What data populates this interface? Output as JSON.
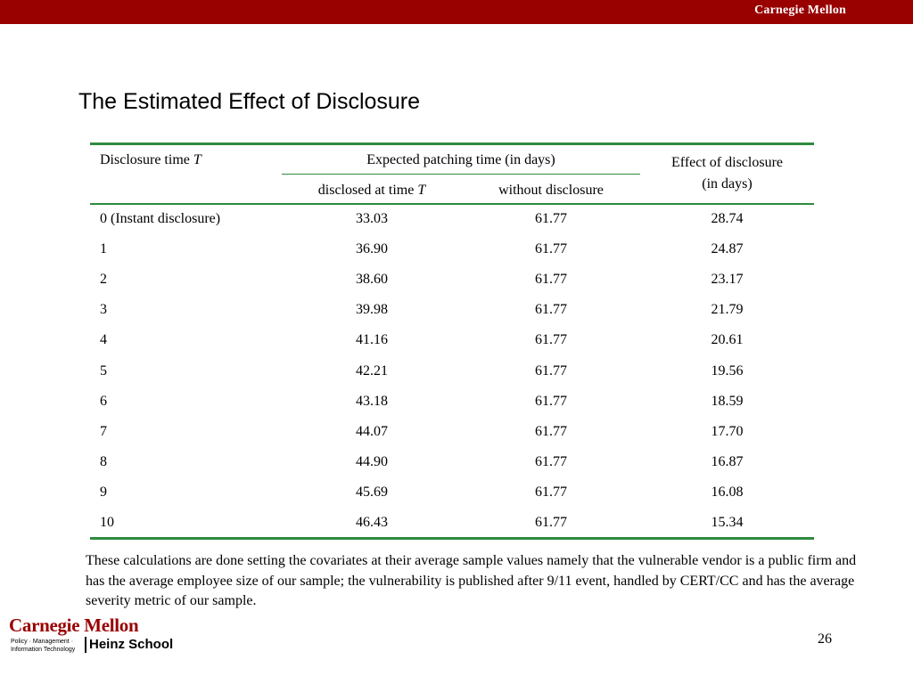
{
  "header": {
    "brand": "Carnegie Mellon",
    "color": "#990000"
  },
  "title": "The Estimated Effect of Disclosure",
  "table": {
    "col0_header": "Disclosure time",
    "col0_header_var": "T",
    "group_header": "Expected patching time (in days)",
    "col1_header": "disclosed at time",
    "col1_header_var": "T",
    "col2_header": "without disclosure",
    "col3_header_line1": "Effect of disclosure",
    "col3_header_line2": "(in days)",
    "rows": [
      [
        "0  (Instant disclosure)",
        "33.03",
        "61.77",
        "28.74"
      ],
      [
        "1",
        "36.90",
        "61.77",
        "24.87"
      ],
      [
        "2",
        "38.60",
        "61.77",
        "23.17"
      ],
      [
        "3",
        "39.98",
        "61.77",
        "21.79"
      ],
      [
        "4",
        "41.16",
        "61.77",
        "20.61"
      ],
      [
        "5",
        "42.21",
        "61.77",
        "19.56"
      ],
      [
        "6",
        "43.18",
        "61.77",
        "18.59"
      ],
      [
        "7",
        "44.07",
        "61.77",
        "17.70"
      ],
      [
        "8",
        "44.90",
        "61.77",
        "16.87"
      ],
      [
        "9",
        "45.69",
        "61.77",
        "16.08"
      ],
      [
        "10",
        "46.43",
        "61.77",
        "15.34"
      ]
    ]
  },
  "note": "These calculations are done setting the covariates at their average sample values namely that the vulnerable vendor is a public firm and has the average employee size of our sample; the vulnerability is published after 9/11 event, handled by CERT/CC and has the average severity metric of our sample.",
  "logo": {
    "name": "Carnegie Mellon",
    "sub_line1": "Policy · Management ·",
    "sub_line2": "Information Technology",
    "school": "Heinz School"
  },
  "page_number": "26"
}
